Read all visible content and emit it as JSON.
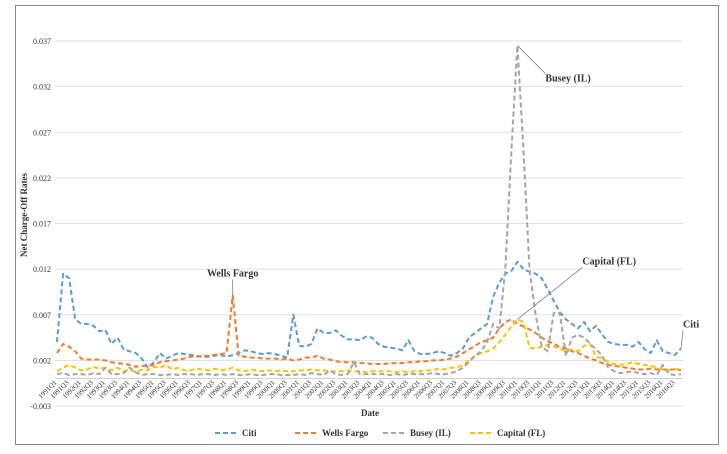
{
  "chart_data": {
    "type": "line",
    "title": "",
    "xlabel": "Date",
    "ylabel": "Net Charge-Off Rates",
    "ylim": [
      -0.003,
      0.037
    ],
    "yticks": [
      -0.003,
      0.002,
      0.007,
      0.012,
      0.017,
      0.022,
      0.027,
      0.032,
      0.037
    ],
    "ytick_labels": [
      "-0.003",
      "0.002",
      "0.007",
      "0.012",
      "0.017",
      "0.022",
      "0.027",
      "0.032",
      "0.037"
    ],
    "grid": true,
    "legend_position": "bottom",
    "x_start_year": 1991,
    "n_points": 104,
    "x_tick_labels": [
      "1991Q1",
      "1991Q3",
      "1992Q1",
      "1992Q3",
      "1993Q1",
      "1993Q3",
      "1994Q1",
      "1994Q3",
      "1995Q1",
      "1995Q3",
      "1996Q1",
      "1996Q3",
      "1997Q1",
      "1997Q3",
      "1998Q1",
      "1998Q3",
      "1999Q1",
      "1999Q3",
      "2000Q1",
      "2000Q3",
      "2001Q1",
      "2001Q3",
      "2002Q1",
      "2002Q3",
      "2003Q1",
      "2003Q3",
      "2004Q1",
      "2004Q3",
      "2005Q1",
      "2005Q3",
      "2006Q1",
      "2006Q3",
      "2007Q1",
      "2007Q3",
      "2008Q1",
      "2008Q3",
      "2009Q1",
      "2009Q3",
      "2010Q1",
      "2010Q3",
      "2011Q1",
      "2011Q3",
      "2012Q1",
      "2012Q3",
      "2013Q1",
      "2013Q3",
      "2014Q1",
      "2014Q3",
      "2015Q1",
      "2015Q3",
      "2016Q1",
      "2016Q3"
    ],
    "series": [
      {
        "name": "Citi",
        "color": "#5b9bd5",
        "values": [
          0.004,
          0.0115,
          0.011,
          0.0065,
          0.006,
          0.006,
          0.0058,
          0.0052,
          0.0053,
          0.0038,
          0.0045,
          0.0032,
          0.003,
          0.0028,
          0.0022,
          0.0012,
          0.0018,
          0.0028,
          0.0022,
          0.0025,
          0.0028,
          0.0027,
          0.0026,
          0.0025,
          0.0024,
          0.0024,
          0.0025,
          0.0026,
          0.0024,
          0.0026,
          0.0028,
          0.0031,
          0.003,
          0.0028,
          0.0027,
          0.0028,
          0.0027,
          0.0025,
          0.0023,
          0.007,
          0.0036,
          0.0035,
          0.0038,
          0.0055,
          0.005,
          0.005,
          0.0053,
          0.0047,
          0.0043,
          0.0043,
          0.0042,
          0.0046,
          0.0045,
          0.0038,
          0.0035,
          0.0034,
          0.0033,
          0.0031,
          0.0042,
          0.003,
          0.0027,
          0.0027,
          0.0028,
          0.003,
          0.0028,
          0.0025,
          0.0028,
          0.0033,
          0.0045,
          0.005,
          0.0055,
          0.006,
          0.009,
          0.0105,
          0.0115,
          0.0118,
          0.0128,
          0.012,
          0.0117,
          0.0115,
          0.011,
          0.0098,
          0.0085,
          0.0073,
          0.0065,
          0.006,
          0.0055,
          0.0062,
          0.0052,
          0.0058,
          0.0048,
          0.004,
          0.0038,
          0.0037,
          0.0037,
          0.0035,
          0.004,
          0.0032,
          0.0028,
          0.0042,
          0.003,
          0.0028,
          0.0026,
          0.0033
        ]
      },
      {
        "name": "Wells Fargo",
        "color": "#ed7d31",
        "values": [
          0.0028,
          0.0038,
          0.0035,
          0.003,
          0.0022,
          0.0021,
          0.0021,
          0.0021,
          0.002,
          0.0018,
          0.0017,
          0.0016,
          0.0015,
          0.0013,
          0.0014,
          0.0014,
          0.0015,
          0.0018,
          0.0019,
          0.002,
          0.0021,
          0.0022,
          0.0024,
          0.0024,
          0.0025,
          0.0025,
          0.0026,
          0.0027,
          0.0028,
          0.0091,
          0.0025,
          0.0024,
          0.0023,
          0.0023,
          0.0022,
          0.0022,
          0.0022,
          0.0021,
          0.0022,
          0.002,
          0.0021,
          0.0023,
          0.0023,
          0.0025,
          0.0022,
          0.0021,
          0.0019,
          0.0018,
          0.0018,
          0.0018,
          0.0017,
          0.0017,
          0.0016,
          0.0016,
          0.0016,
          0.0017,
          0.0017,
          0.0017,
          0.0018,
          0.0018,
          0.0019,
          0.0019,
          0.002,
          0.002,
          0.0021,
          0.0022,
          0.0024,
          0.0028,
          0.0032,
          0.0036,
          0.004,
          0.0042,
          0.0045,
          0.0055,
          0.0062,
          0.0065,
          0.006,
          0.0057,
          0.0054,
          0.005,
          0.0045,
          0.0041,
          0.0038,
          0.0035,
          0.0033,
          0.003,
          0.0028,
          0.0025,
          0.0022,
          0.002,
          0.0017,
          0.0015,
          0.0014,
          0.0013,
          0.0012,
          0.0011,
          0.001,
          0.001,
          0.0011,
          0.001,
          0.001,
          0.001,
          0.001,
          0.0009
        ]
      },
      {
        "name": "Busey (IL)",
        "color": "#a5a5a5",
        "values": [
          0.0005,
          0.0006,
          0.0004,
          0.0005,
          0.0005,
          0.0004,
          0.0006,
          0.0005,
          0.0012,
          0.0005,
          0.0005,
          0.0006,
          0.0012,
          0.0007,
          0.0004,
          0.0005,
          0.0005,
          0.0004,
          0.0004,
          0.0005,
          0.0004,
          0.0005,
          0.0005,
          0.0004,
          0.0005,
          0.0005,
          0.0004,
          0.0005,
          0.0004,
          0.0005,
          0.0004,
          0.0004,
          0.0005,
          0.0004,
          0.0004,
          0.0005,
          0.0005,
          0.0004,
          0.0004,
          0.0004,
          0.0005,
          0.0004,
          0.0006,
          0.0005,
          0.0004,
          0.0009,
          0.0005,
          0.0004,
          0.0005,
          0.0018,
          0.0005,
          0.0005,
          0.0005,
          0.0005,
          0.0005,
          0.0004,
          0.0005,
          0.0004,
          0.0005,
          0.0005,
          0.0005,
          0.0005,
          0.0006,
          0.0005,
          0.0005,
          0.0006,
          0.0008,
          0.0012,
          0.0018,
          0.0025,
          0.003,
          0.004,
          0.006,
          0.0055,
          0.012,
          0.025,
          0.0365,
          0.025,
          0.012,
          0.007,
          0.0035,
          0.003,
          0.0072,
          0.0072,
          0.0025,
          0.0045,
          0.0048,
          0.0045,
          0.0038,
          0.0032,
          0.0025,
          0.0012,
          0.0008,
          0.0006,
          0.0007,
          0.0008,
          0.0006,
          0.0005,
          0.0006,
          0.0004,
          0.0015,
          0.0005,
          0.0004,
          0.0005
        ]
      },
      {
        "name": "Capital (FL)",
        "color": "#ffc000",
        "values": [
          0.0008,
          0.0012,
          0.0015,
          0.0012,
          0.0009,
          0.001,
          0.0013,
          0.0011,
          0.0012,
          0.0009,
          0.0012,
          0.0008,
          0.001,
          0.0007,
          0.001,
          0.0009,
          0.0013,
          0.0012,
          0.0015,
          0.001,
          0.0012,
          0.0009,
          0.0009,
          0.0011,
          0.001,
          0.0009,
          0.0011,
          0.0009,
          0.001,
          0.0012,
          0.0009,
          0.0008,
          0.001,
          0.0009,
          0.0008,
          0.0009,
          0.0008,
          0.0009,
          0.0008,
          0.0008,
          0.0009,
          0.0009,
          0.001,
          0.0009,
          0.0009,
          0.0008,
          0.0008,
          0.0008,
          0.0009,
          0.0008,
          0.0008,
          0.0007,
          0.0008,
          0.0008,
          0.0008,
          0.0008,
          0.0007,
          0.0008,
          0.0007,
          0.0008,
          0.0008,
          0.0009,
          0.0009,
          0.0011,
          0.001,
          0.0012,
          0.0012,
          0.0015,
          0.002,
          0.0025,
          0.0028,
          0.003,
          0.0033,
          0.004,
          0.0048,
          0.0057,
          0.0065,
          0.0062,
          0.0034,
          0.0033,
          0.0035,
          0.0037,
          0.0035,
          0.0033,
          0.003,
          0.0032,
          0.003,
          0.0036,
          0.0038,
          0.0024,
          0.0022,
          0.0018,
          0.0016,
          0.0015,
          0.0016,
          0.0018,
          0.0016,
          0.0015,
          0.0014,
          0.0012,
          0.001,
          0.0009,
          0.001,
          0.0011
        ]
      }
    ],
    "annotations": [
      {
        "text": "Busey (IL)",
        "series": "Busey (IL)",
        "point_index": 76
      },
      {
        "text": "Wells Fargo",
        "series": "Wells Fargo",
        "point_index": 29
      },
      {
        "text": "Capital (FL)",
        "series": "Capital (FL)",
        "point_index": 76
      },
      {
        "text": "Citi",
        "series": "Citi",
        "point_index": 103
      }
    ]
  }
}
